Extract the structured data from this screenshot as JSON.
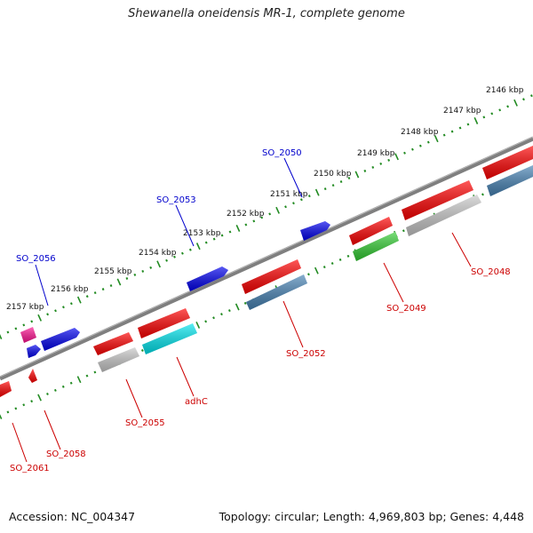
{
  "title": "Shewanella oneidensis MR-1, complete genome",
  "footer": {
    "accession": "Accession: NC_004347",
    "stats": "Topology: circular; Length: 4,969,803 bp; Genes: 4,448"
  },
  "kbp_labels": [
    "2146 kbp",
    "2147 kbp",
    "2148 kbp",
    "2149 kbp",
    "2150 kbp",
    "2151 kbp",
    "2152 kbp",
    "2153 kbp",
    "2154 kbp",
    "2155 kbp",
    "2156 kbp",
    "2157 kbp"
  ],
  "gene_labels_forward": [
    "SO_2050",
    "SO_2053",
    "SO_2056"
  ],
  "gene_labels_reverse": [
    "SO_2048",
    "SO_2049",
    "SO_2052",
    "adhC",
    "SO_2055",
    "SO_2058",
    "SO_2061"
  ],
  "colors": {
    "red": "#ff0000",
    "blue": "#0000ee",
    "steel": "#4682b4",
    "gray": "#c8c8c8",
    "cyan": "#00e5ee",
    "green": "#32cd32",
    "magenta": "#ff1493",
    "backbone": "#7f7f7f",
    "tick": "#228b22",
    "label_forward": "#0000cc",
    "label_reverse": "#cc0000"
  }
}
